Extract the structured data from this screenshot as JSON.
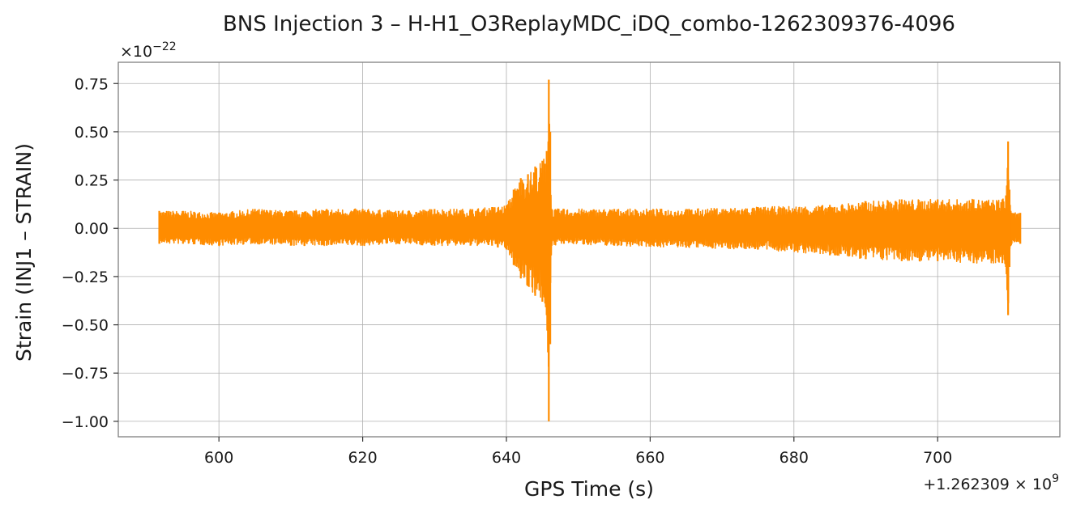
{
  "chart_data": {
    "type": "line",
    "title": "BNS Injection 3 – H-H1_O3ReplayMDC_iDQ_combo-1262309376-4096",
    "xlabel": "GPS Time (s)",
    "ylabel": "Strain (INJ1 – STRAIN)",
    "x_offset_label": "+1.262309 × 10",
    "x_offset_exponent": "9",
    "y_scale_label": "×10",
    "y_scale_exponent": "−22",
    "xlim": [
      586,
      717
    ],
    "ylim": [
      -1.08,
      0.86
    ],
    "xticks": [
      600,
      620,
      640,
      660,
      680,
      700
    ],
    "xtick_labels": [
      "600",
      "620",
      "640",
      "660",
      "680",
      "700"
    ],
    "yticks": [
      0.75,
      0.5,
      0.25,
      0.0,
      -0.25,
      -0.5,
      -0.75,
      -1.0
    ],
    "ytick_labels": [
      "0.75",
      "0.50",
      "0.25",
      "0.00",
      "−0.25",
      "−0.50",
      "−0.75",
      "−1.00"
    ],
    "grid": true,
    "color": "#ff8c00",
    "series": [
      {
        "x": [
          591.7,
          595,
          600,
          605,
          610,
          615,
          620,
          625,
          630,
          635,
          638,
          640,
          641,
          642,
          643,
          644,
          645,
          645.6,
          645.9,
          646.1,
          646.3,
          648,
          655,
          665,
          675,
          685,
          690,
          695,
          700,
          705,
          709,
          709.5,
          709.8,
          710,
          710.3,
          711.5
        ],
        "upper": [
          0.09,
          0.09,
          0.08,
          0.1,
          0.09,
          0.1,
          0.1,
          0.09,
          0.1,
          0.1,
          0.11,
          0.12,
          0.2,
          0.26,
          0.28,
          0.32,
          0.35,
          0.4,
          0.77,
          0.5,
          0.1,
          0.1,
          0.1,
          0.1,
          0.11,
          0.12,
          0.14,
          0.15,
          0.15,
          0.15,
          0.15,
          0.17,
          0.45,
          0.2,
          0.08,
          0.08
        ],
        "lower": [
          -0.08,
          -0.08,
          -0.09,
          -0.08,
          -0.09,
          -0.09,
          -0.09,
          -0.08,
          -0.09,
          -0.09,
          -0.09,
          -0.11,
          -0.19,
          -0.26,
          -0.3,
          -0.35,
          -0.38,
          -0.45,
          -1.0,
          -0.6,
          -0.09,
          -0.08,
          -0.09,
          -0.1,
          -0.11,
          -0.14,
          -0.16,
          -0.17,
          -0.17,
          -0.18,
          -0.18,
          -0.2,
          -0.45,
          -0.2,
          -0.08,
          -0.08
        ]
      }
    ]
  }
}
